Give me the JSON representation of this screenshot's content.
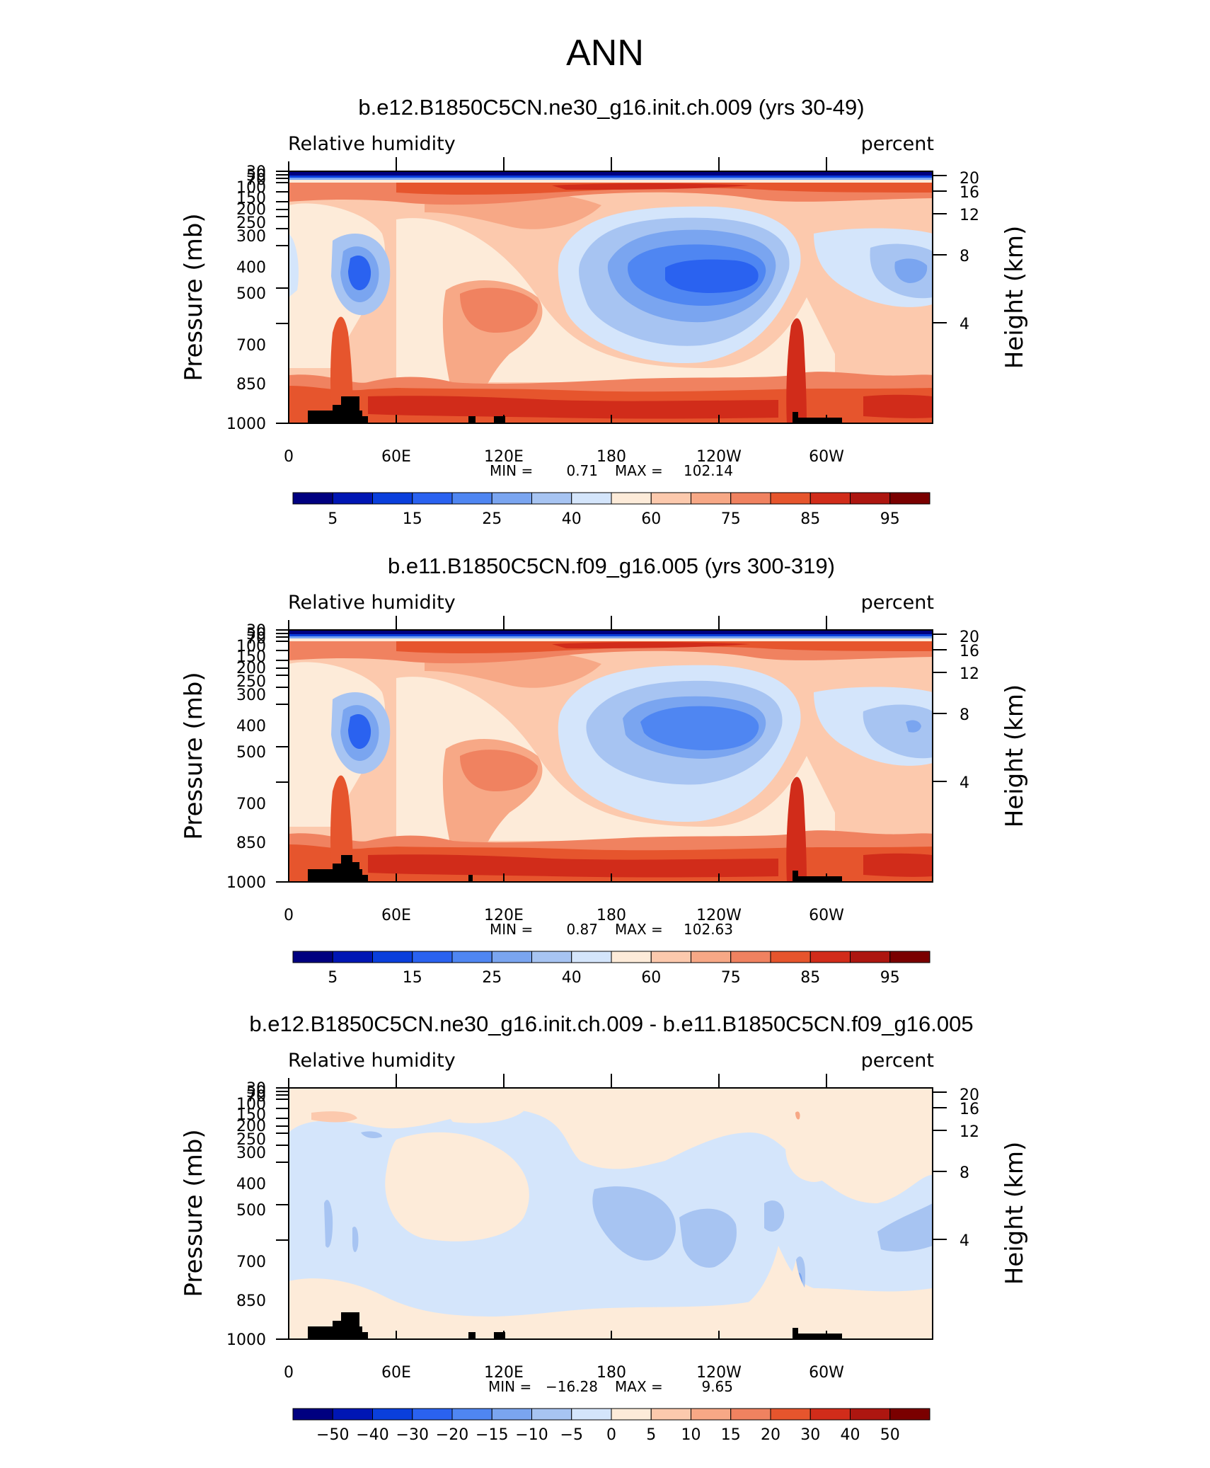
{
  "page_title": "ANN",
  "chart_data": [
    {
      "type": "heatmap",
      "title": "b.e12.B1850C5CN.ne30_g16.init.ch.009 (yrs 30-49)",
      "left_label": "Relative humidity",
      "right_label": "percent",
      "ylabel": "Pressure (mb)",
      "y2label": "Height (km)",
      "x_ticks": [
        "0",
        "60E",
        "120E",
        "180",
        "120W",
        "60W"
      ],
      "pressure_ticks": [
        "30",
        "50",
        "70",
        "100",
        "150",
        "200",
        "250",
        "300",
        "400",
        "500",
        "700",
        "850",
        "1000"
      ],
      "height_ticks": [
        "20",
        "16",
        "12",
        "8",
        "4"
      ],
      "min_label": "MIN =",
      "min_value": "0.71",
      "max_label": "MAX =",
      "max_value": "102.14",
      "colorbar_labels": [
        "5",
        "15",
        "25",
        "40",
        "60",
        "75",
        "85",
        "95"
      ],
      "colors": [
        "#000080",
        "#0016b4",
        "#0a3fdc",
        "#2a62f0",
        "#4f86f2",
        "#7aa5f0",
        "#a7c4f2",
        "#d4e5fb",
        "#fdebd9",
        "#fcc9ad",
        "#f7a886",
        "#f08260",
        "#e6552d",
        "#d12c1a",
        "#ad1610",
        "#7a0000"
      ]
    },
    {
      "type": "heatmap",
      "title": "b.e11.B1850C5CN.f09_g16.005 (yrs 300-319)",
      "left_label": "Relative humidity",
      "right_label": "percent",
      "ylabel": "Pressure (mb)",
      "y2label": "Height (km)",
      "x_ticks": [
        "0",
        "60E",
        "120E",
        "180",
        "120W",
        "60W"
      ],
      "pressure_ticks": [
        "30",
        "50",
        "70",
        "100",
        "150",
        "200",
        "250",
        "300",
        "400",
        "500",
        "700",
        "850",
        "1000"
      ],
      "height_ticks": [
        "20",
        "16",
        "12",
        "8",
        "4"
      ],
      "min_label": "MIN =",
      "min_value": "0.87",
      "max_label": "MAX =",
      "max_value": "102.63",
      "colorbar_labels": [
        "5",
        "15",
        "25",
        "40",
        "60",
        "75",
        "85",
        "95"
      ],
      "colors": [
        "#000080",
        "#0016b4",
        "#0a3fdc",
        "#2a62f0",
        "#4f86f2",
        "#7aa5f0",
        "#a7c4f2",
        "#d4e5fb",
        "#fdebd9",
        "#fcc9ad",
        "#f7a886",
        "#f08260",
        "#e6552d",
        "#d12c1a",
        "#ad1610",
        "#7a0000"
      ]
    },
    {
      "type": "heatmap",
      "title": "b.e12.B1850C5CN.ne30_g16.init.ch.009 - b.e11.B1850C5CN.f09_g16.005",
      "left_label": "Relative humidity",
      "right_label": "percent",
      "ylabel": "Pressure (mb)",
      "y2label": "Height (km)",
      "x_ticks": [
        "0",
        "60E",
        "120E",
        "180",
        "120W",
        "60W"
      ],
      "pressure_ticks": [
        "30",
        "50",
        "70",
        "100",
        "150",
        "200",
        "250",
        "300",
        "400",
        "500",
        "700",
        "850",
        "1000"
      ],
      "height_ticks": [
        "20",
        "16",
        "12",
        "8",
        "4"
      ],
      "min_label": "MIN =",
      "min_value": "−16.28",
      "max_label": "MAX =",
      "max_value": "9.65",
      "colorbar_labels": [
        "−50",
        "−40",
        "−30",
        "−20",
        "−15",
        "−10",
        "−5",
        "0",
        "5",
        "10",
        "15",
        "20",
        "30",
        "40",
        "50"
      ],
      "colors": [
        "#000080",
        "#0016b4",
        "#0a3fdc",
        "#2a62f0",
        "#4f86f2",
        "#7aa5f0",
        "#a7c4f2",
        "#d4e5fb",
        "#fdebd9",
        "#fcc9ad",
        "#f7a886",
        "#f08260",
        "#e6552d",
        "#d12c1a",
        "#ad1610",
        "#7a0000"
      ]
    }
  ]
}
